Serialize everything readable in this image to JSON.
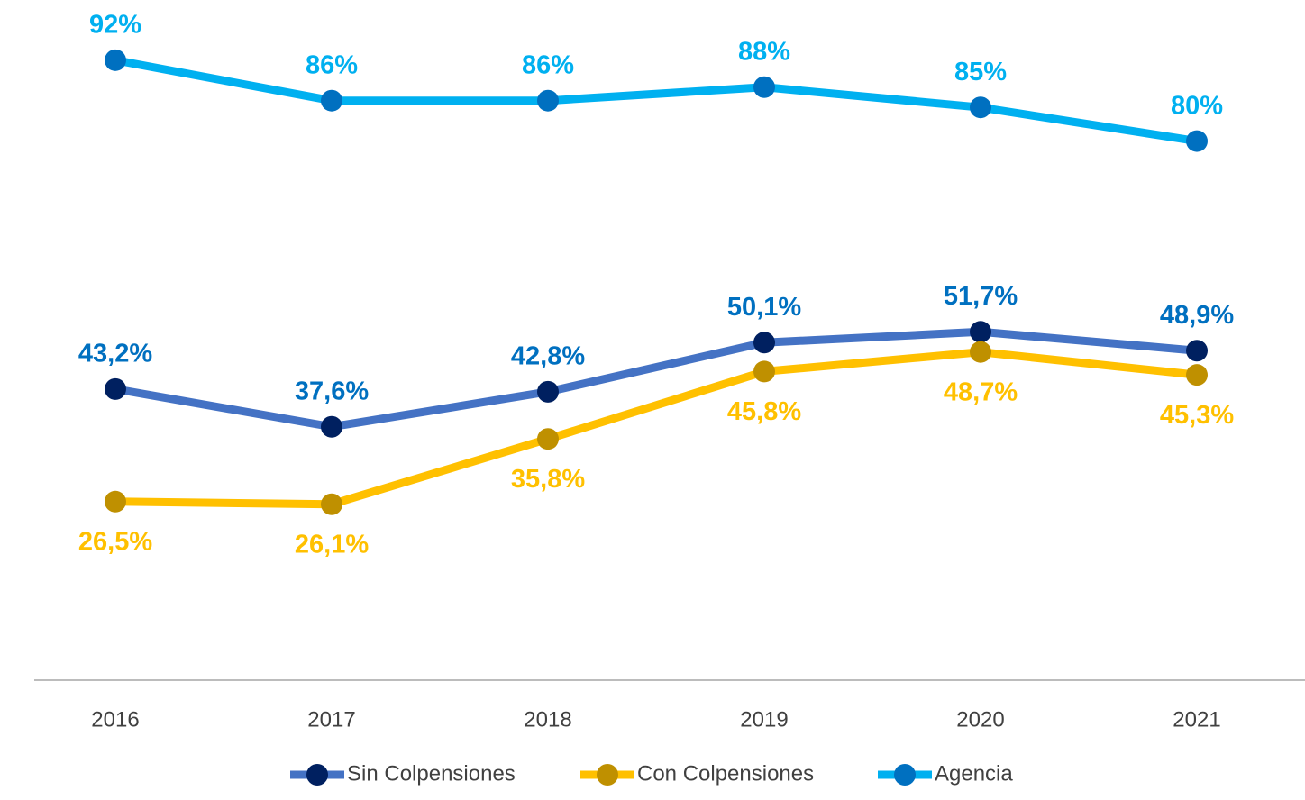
{
  "chart_data": {
    "type": "line",
    "categories": [
      "2016",
      "2017",
      "2018",
      "2019",
      "2020",
      "2021"
    ],
    "ylim": [
      0,
      100
    ],
    "series": [
      {
        "name": "Sin Colpensiones",
        "color": "#4472c4",
        "marker_color": "#002060",
        "label_color": "#0070c0",
        "label_position": "above",
        "values": [
          43.2,
          37.6,
          42.8,
          50.1,
          51.7,
          48.9
        ],
        "value_labels": [
          "43,2%",
          "37,6%",
          "42,8%",
          "50,1%",
          "51,7%",
          "48,9%"
        ]
      },
      {
        "name": "Con Colpensiones",
        "color": "#ffc000",
        "marker_color": "#bf9000",
        "label_color": "#ffc000",
        "label_position": "below",
        "values": [
          26.5,
          26.1,
          35.8,
          45.8,
          48.7,
          45.3
        ],
        "value_labels": [
          "26,5%",
          "26,1%",
          "35,8%",
          "45,8%",
          "48,7%",
          "45,3%"
        ]
      },
      {
        "name": "Agencia",
        "color": "#00b0f0",
        "marker_color": "#0070c0",
        "label_color": "#00b0f0",
        "label_position": "above",
        "values": [
          92,
          86,
          86,
          88,
          85,
          80
        ],
        "value_labels": [
          "92%",
          "86%",
          "86%",
          "88%",
          "85%",
          "80%"
        ]
      }
    ],
    "legend": "bottom"
  }
}
